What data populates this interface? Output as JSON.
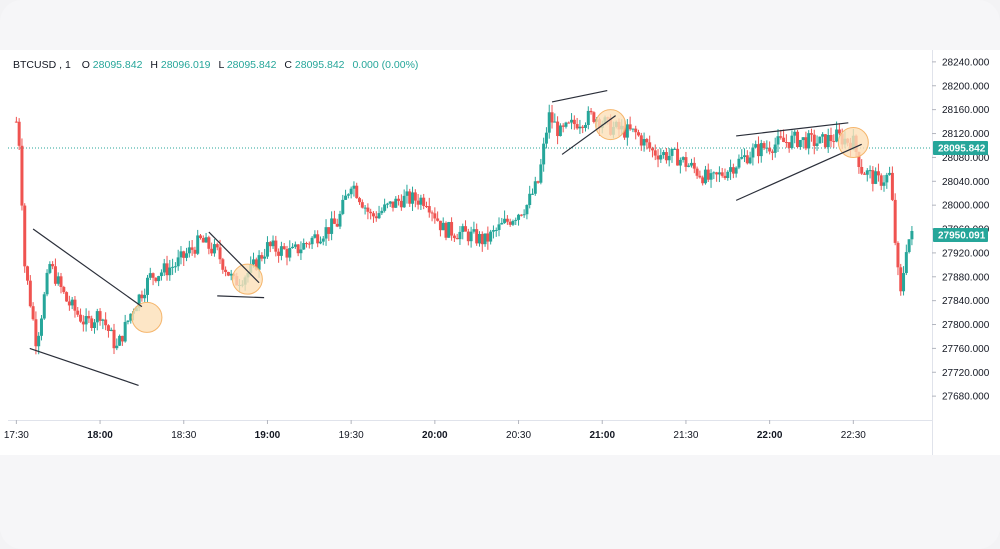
{
  "legend": {
    "symbol": "BTCUSD",
    "interval": "1",
    "o_label": "O",
    "o_value": "28095.842",
    "h_label": "H",
    "h_value": "28096.019",
    "l_label": "L",
    "l_value": "28095.842",
    "c_label": "C",
    "c_value": "28095.842",
    "change": "0.000 (0.00%)",
    "label_color": "#131722",
    "value_color": "#26a69a"
  },
  "colors": {
    "up": "#26a69a",
    "down": "#ef5350",
    "dotted_line": "#26a69a",
    "trendline": "#2a2e39",
    "highlight_fill": "#fde0b8",
    "highlight_stroke": "#f5b56b"
  },
  "chart_data": {
    "type": "candlestick",
    "title": "",
    "xlabel": "",
    "ylabel": "",
    "ylim": [
      27640,
      28260
    ],
    "x_ticks": [
      {
        "label": "17:30",
        "x": 17.5
      },
      {
        "label": "18:00",
        "x": 18.0
      },
      {
        "label": "18:30",
        "x": 18.5
      },
      {
        "label": "19:00",
        "x": 19.0
      },
      {
        "label": "19:30",
        "x": 19.5
      },
      {
        "label": "20:00",
        "x": 20.0
      },
      {
        "label": "20:30",
        "x": 20.5
      },
      {
        "label": "21:00",
        "x": 21.0
      },
      {
        "label": "21:30",
        "x": 21.5
      },
      {
        "label": "22:00",
        "x": 22.0
      },
      {
        "label": "22:30",
        "x": 22.5
      }
    ],
    "y_ticks": [
      "28240.000",
      "28200.000",
      "28160.000",
      "28120.000",
      "28080.000",
      "28040.000",
      "28000.000",
      "27960.000",
      "27920.000",
      "27880.000",
      "27840.000",
      "27800.000",
      "27760.000",
      "27720.000",
      "27680.000"
    ],
    "price_labels": [
      {
        "text": "28095.842",
        "value": 28095.842,
        "color": "#26a69a"
      },
      {
        "text": "27950.091",
        "value": 27950.091,
        "color": "#26a69a"
      }
    ],
    "anchors": [
      {
        "x": 17.5,
        "y": 28140
      },
      {
        "x": 17.52,
        "y": 28100
      },
      {
        "x": 17.55,
        "y": 27900
      },
      {
        "x": 17.62,
        "y": 27770
      },
      {
        "x": 17.7,
        "y": 27900
      },
      {
        "x": 17.8,
        "y": 27840
      },
      {
        "x": 17.92,
        "y": 27800
      },
      {
        "x": 18.0,
        "y": 27820
      },
      {
        "x": 18.1,
        "y": 27760
      },
      {
        "x": 18.2,
        "y": 27830
      },
      {
        "x": 18.3,
        "y": 27880
      },
      {
        "x": 18.45,
        "y": 27900
      },
      {
        "x": 18.6,
        "y": 27940
      },
      {
        "x": 18.7,
        "y": 27920
      },
      {
        "x": 18.8,
        "y": 27870
      },
      {
        "x": 18.9,
        "y": 27890
      },
      {
        "x": 19.0,
        "y": 27930
      },
      {
        "x": 19.15,
        "y": 27920
      },
      {
        "x": 19.3,
        "y": 27950
      },
      {
        "x": 19.42,
        "y": 27970
      },
      {
        "x": 19.5,
        "y": 28040
      },
      {
        "x": 19.62,
        "y": 27980
      },
      {
        "x": 19.8,
        "y": 28010
      },
      {
        "x": 19.95,
        "y": 28010
      },
      {
        "x": 20.05,
        "y": 27960
      },
      {
        "x": 20.2,
        "y": 27950
      },
      {
        "x": 20.3,
        "y": 27940
      },
      {
        "x": 20.42,
        "y": 27970
      },
      {
        "x": 20.55,
        "y": 28000
      },
      {
        "x": 20.62,
        "y": 28040
      },
      {
        "x": 20.68,
        "y": 28150
      },
      {
        "x": 20.75,
        "y": 28120
      },
      {
        "x": 20.85,
        "y": 28140
      },
      {
        "x": 20.95,
        "y": 28150
      },
      {
        "x": 21.05,
        "y": 28130
      },
      {
        "x": 21.2,
        "y": 28120
      },
      {
        "x": 21.3,
        "y": 28090
      },
      {
        "x": 21.45,
        "y": 28080
      },
      {
        "x": 21.6,
        "y": 28050
      },
      {
        "x": 21.65,
        "y": 28040
      },
      {
        "x": 21.75,
        "y": 28060
      },
      {
        "x": 21.9,
        "y": 28090
      },
      {
        "x": 22.0,
        "y": 28100
      },
      {
        "x": 22.15,
        "y": 28110
      },
      {
        "x": 22.3,
        "y": 28105
      },
      {
        "x": 22.4,
        "y": 28115
      },
      {
        "x": 22.5,
        "y": 28105
      },
      {
        "x": 22.55,
        "y": 28060
      },
      {
        "x": 22.65,
        "y": 28040
      },
      {
        "x": 22.72,
        "y": 28050
      },
      {
        "x": 22.75,
        "y": 27940
      },
      {
        "x": 22.78,
        "y": 27840
      },
      {
        "x": 22.82,
        "y": 27940
      },
      {
        "x": 22.86,
        "y": 27950
      }
    ],
    "trendlines": [
      {
        "x1": 17.6,
        "y1": 27960,
        "x2": 18.25,
        "y2": 27830
      },
      {
        "x1": 17.58,
        "y1": 27760,
        "x2": 18.23,
        "y2": 27698
      },
      {
        "x1": 18.65,
        "y1": 27955,
        "x2": 18.95,
        "y2": 27870
      },
      {
        "x1": 18.7,
        "y1": 27848,
        "x2": 18.98,
        "y2": 27845
      },
      {
        "x1": 20.7,
        "y1": 28173,
        "x2": 21.03,
        "y2": 28192
      },
      {
        "x1": 20.76,
        "y1": 28085,
        "x2": 21.08,
        "y2": 28150
      },
      {
        "x1": 21.8,
        "y1": 28116,
        "x2": 22.47,
        "y2": 28138
      },
      {
        "x1": 21.8,
        "y1": 28008,
        "x2": 22.55,
        "y2": 28102
      }
    ],
    "highlights": [
      {
        "x": 18.28,
        "y": 27812
      },
      {
        "x": 18.88,
        "y": 27876
      },
      {
        "x": 21.05,
        "y": 28135
      },
      {
        "x": 22.5,
        "y": 28105
      }
    ]
  }
}
